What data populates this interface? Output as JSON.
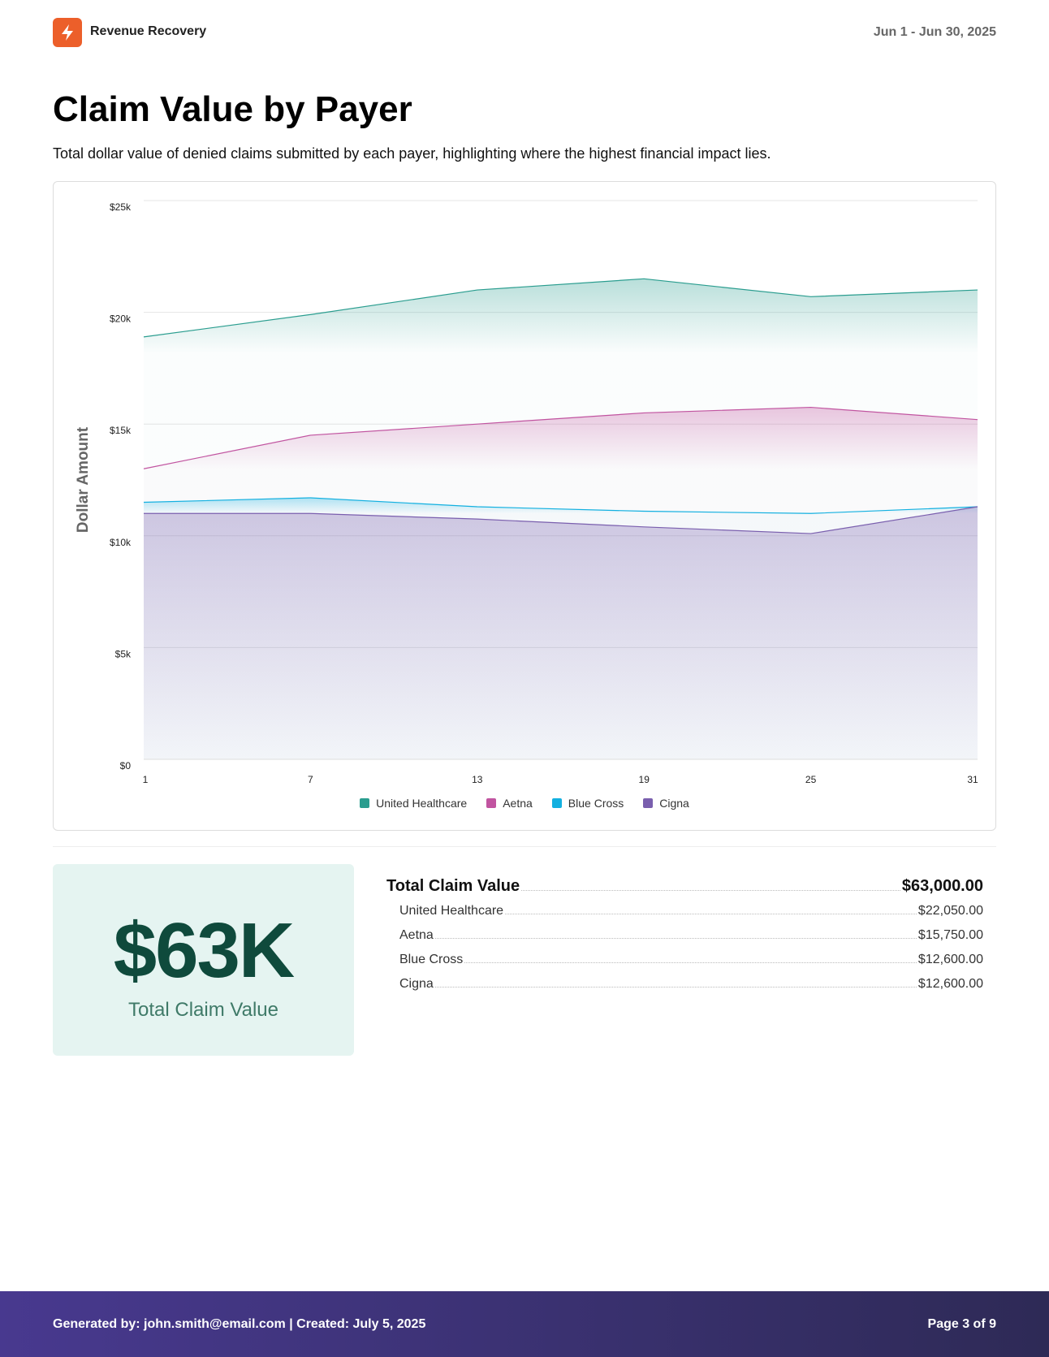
{
  "header": {
    "brand": "Revenue Recovery",
    "date_range": "Jun 1 - Jun 30, 2025",
    "logo_icon": "lightning-bolt-icon",
    "brand_color": "#ec5f2a"
  },
  "page": {
    "title": "Claim Value by Payer",
    "subtitle": "Total dollar value of denied claims submitted by each payer, highlighting where the highest financial impact lies."
  },
  "chart_data": {
    "type": "area",
    "ylabel": "Dollar Amount",
    "xlabel": "",
    "x": [
      1,
      7,
      13,
      19,
      25,
      31
    ],
    "x_ticks": [
      "1",
      "7",
      "13",
      "19",
      "25",
      "31"
    ],
    "y_ticks": [
      "$0",
      "$5k",
      "$10k",
      "$15k",
      "$20k",
      "$25k"
    ],
    "ylim": [
      0,
      25000
    ],
    "grid": true,
    "legend": "bottom",
    "series": [
      {
        "name": "United Healthcare",
        "color": "#2a9d8f",
        "values": [
          18900,
          19900,
          21000,
          21500,
          20700,
          21000
        ]
      },
      {
        "name": "Aetna",
        "color": "#c154a0",
        "values": [
          13000,
          14500,
          15000,
          15500,
          15750,
          15200
        ]
      },
      {
        "name": "Blue Cross",
        "color": "#13b0e0",
        "values": [
          11500,
          11700,
          11300,
          11100,
          11000,
          11300
        ]
      },
      {
        "name": "Cigna",
        "color": "#7a5fae",
        "values": [
          11000,
          11000,
          10750,
          10400,
          10100,
          11300
        ]
      }
    ]
  },
  "summary": {
    "big_value": "$63K",
    "big_label": "Total Claim Value",
    "total_label": "Total Claim Value",
    "total_value": "$63,000.00",
    "rows": [
      {
        "label": "United Healthcare",
        "value": "$22,050.00"
      },
      {
        "label": "Aetna",
        "value": "$15,750.00"
      },
      {
        "label": "Blue Cross",
        "value": "$12,600.00"
      },
      {
        "label": "Cigna",
        "value": "$12,600.00"
      }
    ]
  },
  "footer": {
    "generated": "Generated by: john.smith@email.com | Created: July 5, 2025",
    "page": "Page 3 of 9"
  }
}
